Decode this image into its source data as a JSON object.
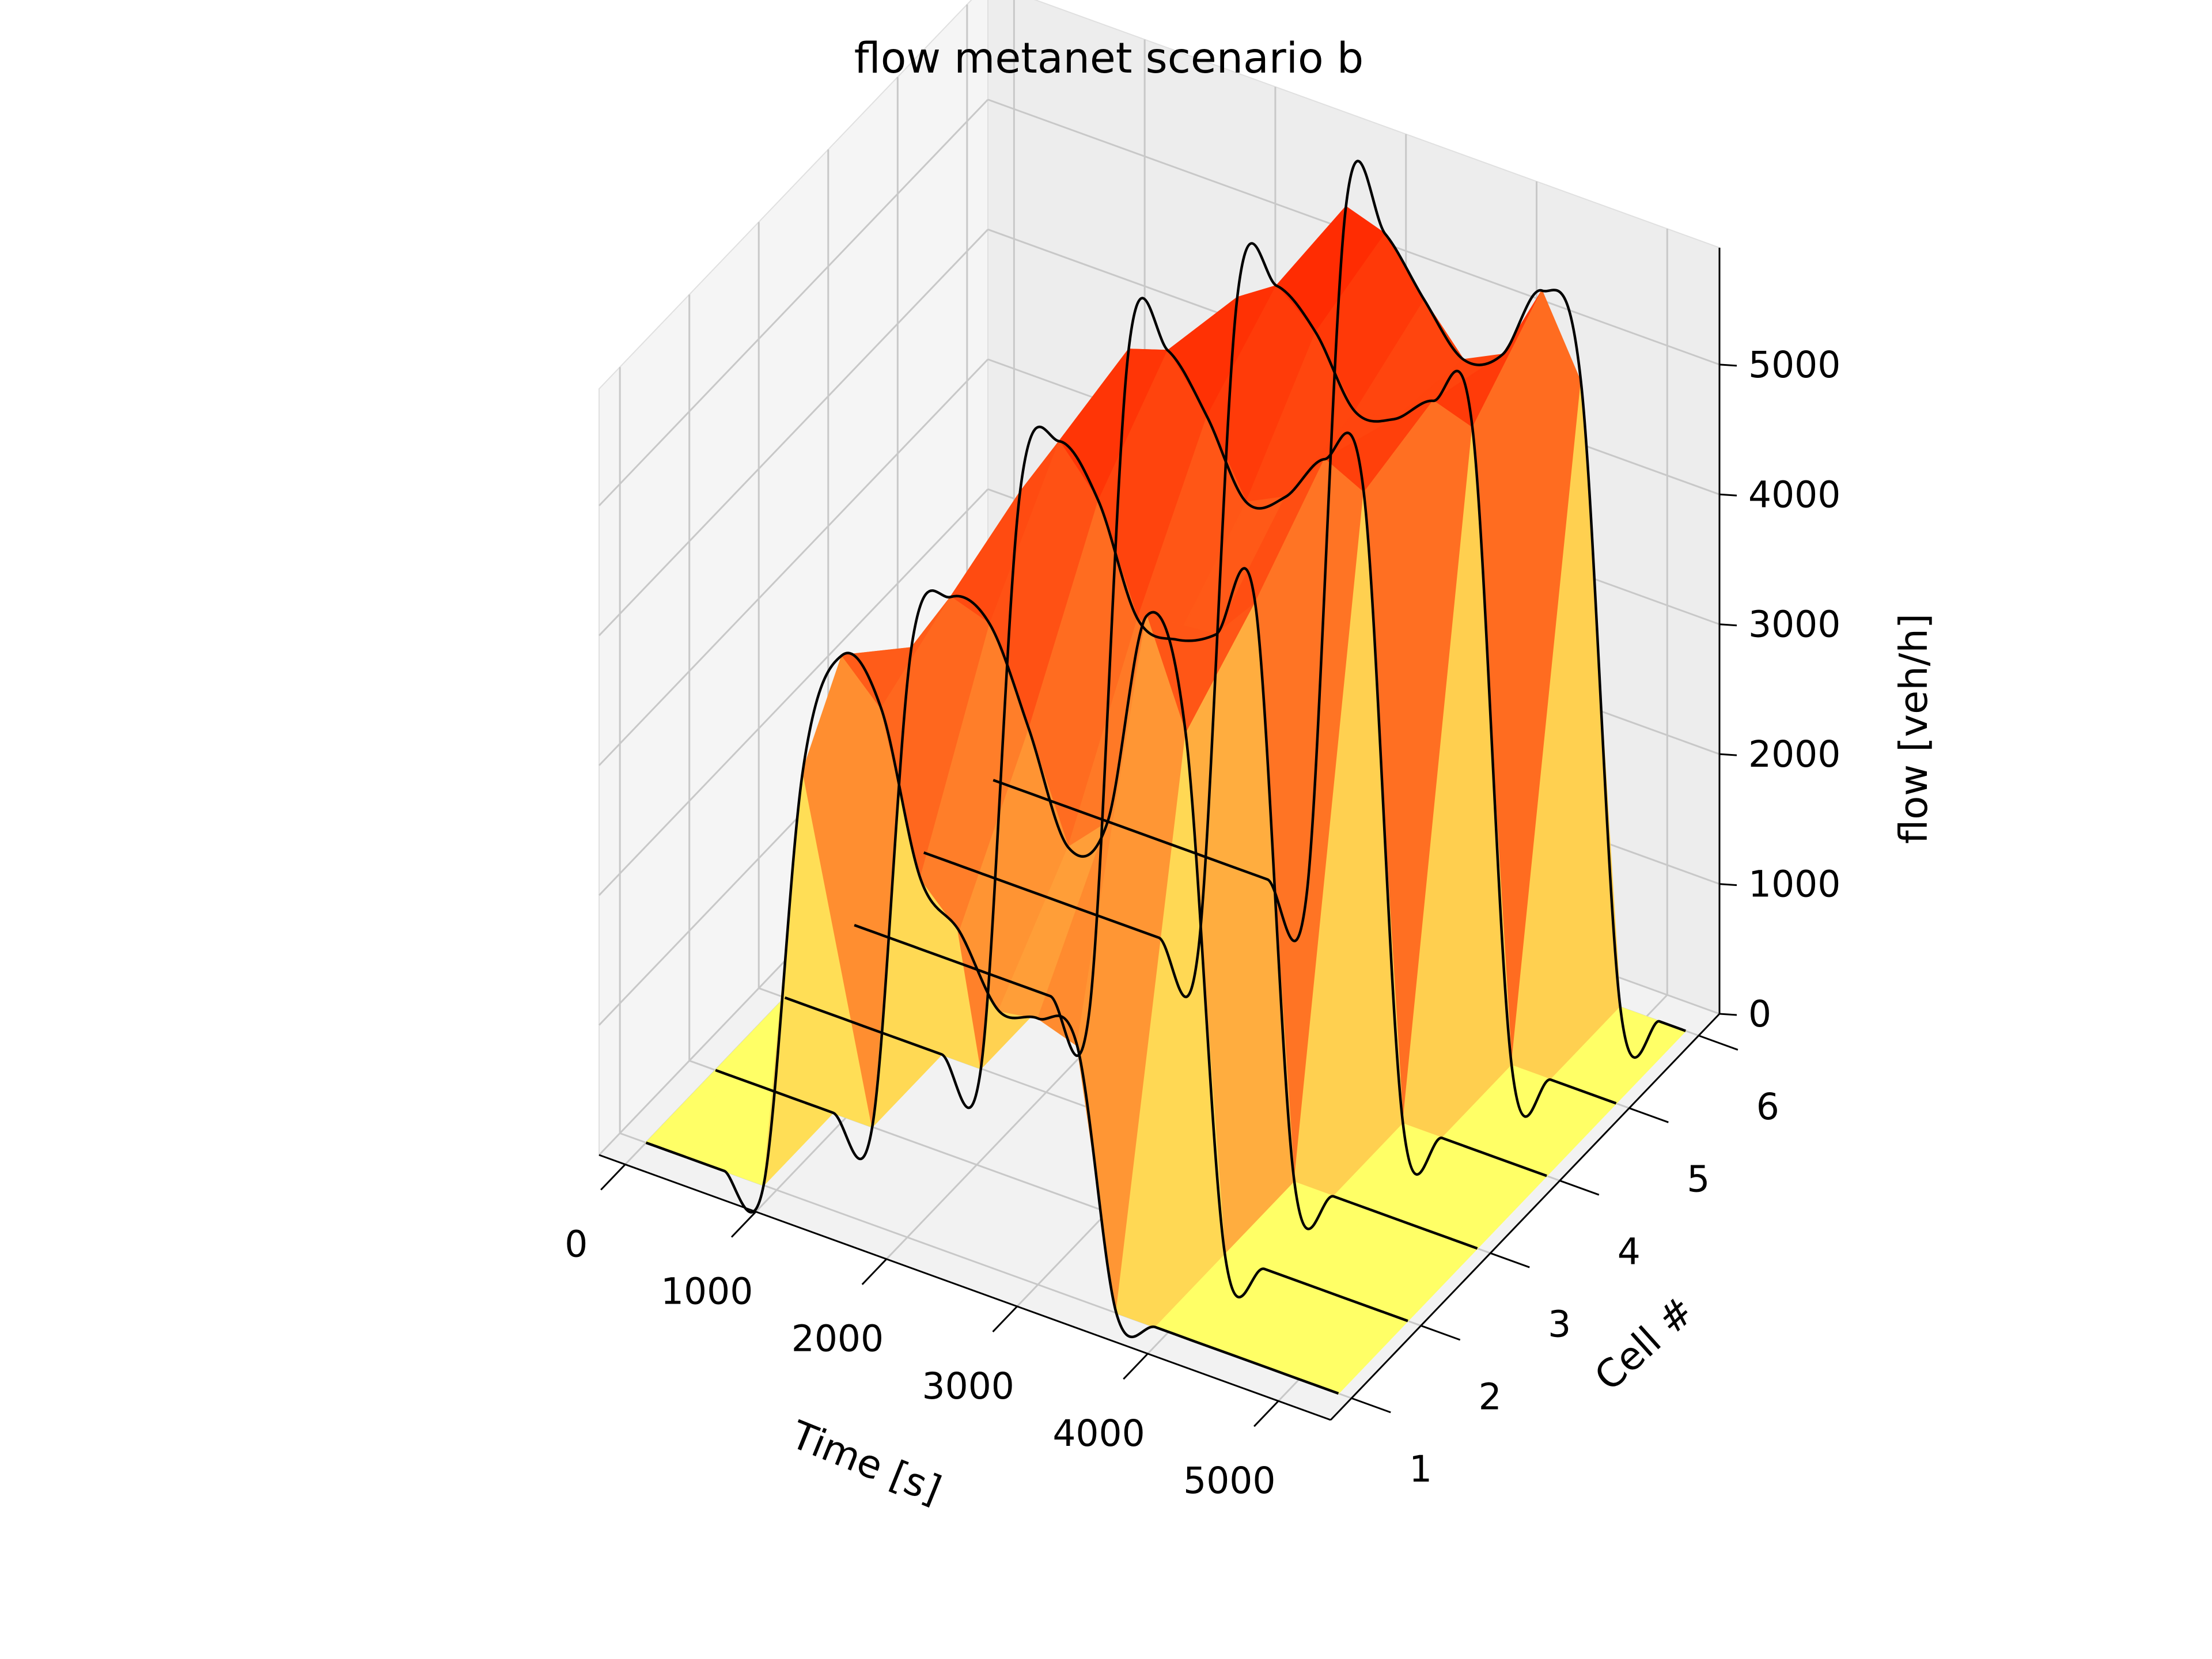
{
  "chart_data": {
    "type": "surface3d",
    "title": "flow metanet scenario b",
    "xlabel": "Time [s]",
    "ylabel": "Cell #",
    "zlabel": "flow [veh/h]",
    "x_ticks": [
      "0",
      "1000",
      "2000",
      "3000",
      "4000",
      "5000"
    ],
    "y_ticks": [
      "1",
      "2",
      "3",
      "4",
      "5",
      "6"
    ],
    "z_ticks": [
      "0",
      "1000",
      "2000",
      "3000",
      "4000",
      "5000"
    ],
    "xlim": [
      -200,
      5400
    ],
    "ylim": [
      0.7,
      6.3
    ],
    "zlim": [
      0,
      5900
    ],
    "grid": true,
    "colormap": "autumn_r",
    "colors": {
      "low": "#ffff66",
      "high": "#ff2a00",
      "pane": "#f2f2f2",
      "grid": "#c8c8c8",
      "line": "#000000"
    },
    "cells": [
      1,
      2,
      3,
      4,
      5,
      6
    ],
    "time": [
      0,
      150,
      300,
      450,
      600,
      900,
      1200,
      1500,
      1800,
      2100,
      2400,
      2700,
      3000,
      3300,
      3600,
      3900,
      4200,
      4500,
      4800,
      5100,
      5300
    ],
    "series": [
      {
        "values": [
          0,
          0,
          0,
          0,
          0,
          0,
          3300,
          4300,
          4000,
          2800,
          2500,
          2000,
          2050,
          1950,
          0,
          0,
          0,
          0,
          0,
          0,
          0
        ]
      },
      {
        "values": [
          0,
          0,
          0,
          0,
          0,
          0,
          0,
          3800,
          4300,
          4200,
          3500,
          2700,
          3000,
          4700,
          3900,
          0,
          0,
          0,
          0,
          0,
          0
        ]
      },
      {
        "values": [
          0,
          0,
          0,
          0,
          0,
          0,
          0,
          0,
          4550,
          5050,
          4700,
          3900,
          3850,
          4000,
          4350,
          0,
          0,
          0,
          0,
          0,
          0
        ]
      },
      {
        "values": [
          0,
          0,
          0,
          0,
          0,
          0,
          0,
          0,
          0,
          5200,
          5300,
          4900,
          4350,
          4500,
          4900,
          4750,
          0,
          0,
          0,
          0,
          0
        ]
      },
      {
        "values": [
          0,
          0,
          0,
          0,
          0,
          0,
          0,
          0,
          0,
          0,
          5150,
          5350,
          5100,
          4600,
          4650,
          4900,
          4800,
          0,
          0,
          0,
          0
        ]
      },
      {
        "values": [
          0,
          0,
          0,
          0,
          0,
          0,
          0,
          0,
          0,
          0,
          0,
          5400,
          5300,
          4900,
          4550,
          4700,
          5300,
          4700,
          0,
          0,
          0
        ]
      }
    ]
  }
}
